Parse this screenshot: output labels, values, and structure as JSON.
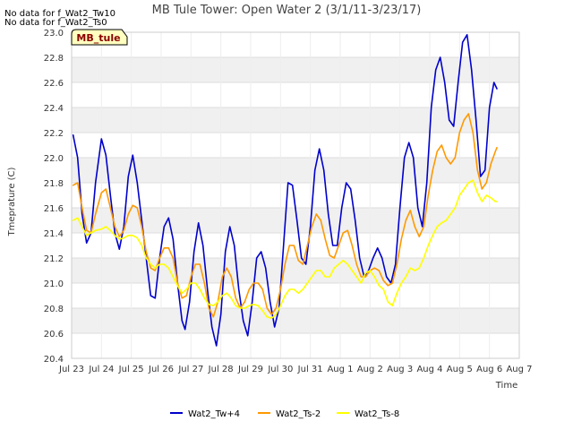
{
  "chart_data": {
    "type": "line",
    "title": "MB Tule Tower: Open Water 2 (3/1/11-3/23/17)",
    "xlabel": "Time",
    "ylabel": "Tmeprature (C)",
    "ylim": [
      20.4,
      23.0
    ],
    "xlim": [
      0,
      15
    ],
    "yticks": [
      "20.4",
      "20.6",
      "20.8",
      "21.0",
      "21.2",
      "21.4",
      "21.6",
      "21.8",
      "22.0",
      "22.2",
      "22.4",
      "22.6",
      "22.8",
      "23.0"
    ],
    "xticks": [
      "Jul 23",
      "Jul 24",
      "Jul 25",
      "Jul 26",
      "Jul 27",
      "Jul 28",
      "Jul 29",
      "Jul 30",
      "Jul 31",
      "Aug 1",
      "Aug 2",
      "Aug 3",
      "Aug 4",
      "Aug 5",
      "Aug 6",
      "Aug 7"
    ],
    "no_data_notes": [
      "No data for f_Wat2_Tw10",
      "No data for f_Wat2_Ts0"
    ],
    "badge": "MB_tule",
    "legend_position": "bottom-center",
    "series": [
      {
        "name": "Wat2_Tw+4",
        "color": "#0000cc",
        "points": [
          [
            0.05,
            22.18
          ],
          [
            0.2,
            22.0
          ],
          [
            0.35,
            21.55
          ],
          [
            0.5,
            21.32
          ],
          [
            0.65,
            21.4
          ],
          [
            0.8,
            21.8
          ],
          [
            1.0,
            22.15
          ],
          [
            1.15,
            22.02
          ],
          [
            1.3,
            21.7
          ],
          [
            1.45,
            21.4
          ],
          [
            1.6,
            21.27
          ],
          [
            1.75,
            21.45
          ],
          [
            1.9,
            21.85
          ],
          [
            2.05,
            22.02
          ],
          [
            2.2,
            21.8
          ],
          [
            2.35,
            21.5
          ],
          [
            2.5,
            21.2
          ],
          [
            2.65,
            20.9
          ],
          [
            2.8,
            20.88
          ],
          [
            2.95,
            21.2
          ],
          [
            3.1,
            21.45
          ],
          [
            3.25,
            21.52
          ],
          [
            3.4,
            21.35
          ],
          [
            3.55,
            21.0
          ],
          [
            3.7,
            20.7
          ],
          [
            3.8,
            20.63
          ],
          [
            3.95,
            20.85
          ],
          [
            4.1,
            21.25
          ],
          [
            4.25,
            21.48
          ],
          [
            4.4,
            21.3
          ],
          [
            4.55,
            20.95
          ],
          [
            4.7,
            20.65
          ],
          [
            4.85,
            20.5
          ],
          [
            5.0,
            20.75
          ],
          [
            5.15,
            21.25
          ],
          [
            5.3,
            21.45
          ],
          [
            5.45,
            21.3
          ],
          [
            5.6,
            20.95
          ],
          [
            5.75,
            20.7
          ],
          [
            5.9,
            20.58
          ],
          [
            6.05,
            20.85
          ],
          [
            6.2,
            21.2
          ],
          [
            6.35,
            21.25
          ],
          [
            6.5,
            21.12
          ],
          [
            6.65,
            20.85
          ],
          [
            6.8,
            20.65
          ],
          [
            6.95,
            20.8
          ],
          [
            7.1,
            21.3
          ],
          [
            7.25,
            21.8
          ],
          [
            7.4,
            21.78
          ],
          [
            7.55,
            21.5
          ],
          [
            7.7,
            21.2
          ],
          [
            7.85,
            21.15
          ],
          [
            8.0,
            21.45
          ],
          [
            8.15,
            21.9
          ],
          [
            8.3,
            22.07
          ],
          [
            8.45,
            21.9
          ],
          [
            8.6,
            21.55
          ],
          [
            8.75,
            21.3
          ],
          [
            8.9,
            21.3
          ],
          [
            9.05,
            21.6
          ],
          [
            9.2,
            21.8
          ],
          [
            9.35,
            21.75
          ],
          [
            9.5,
            21.5
          ],
          [
            9.65,
            21.2
          ],
          [
            9.8,
            21.05
          ],
          [
            9.95,
            21.1
          ],
          [
            10.1,
            21.2
          ],
          [
            10.25,
            21.28
          ],
          [
            10.4,
            21.2
          ],
          [
            10.55,
            21.05
          ],
          [
            10.7,
            21.0
          ],
          [
            10.85,
            21.15
          ],
          [
            11.0,
            21.6
          ],
          [
            11.15,
            22.0
          ],
          [
            11.3,
            22.12
          ],
          [
            11.45,
            22.0
          ],
          [
            11.6,
            21.6
          ],
          [
            11.75,
            21.45
          ],
          [
            11.9,
            21.8
          ],
          [
            12.05,
            22.4
          ],
          [
            12.2,
            22.7
          ],
          [
            12.35,
            22.8
          ],
          [
            12.5,
            22.6
          ],
          [
            12.65,
            22.3
          ],
          [
            12.8,
            22.25
          ],
          [
            12.95,
            22.6
          ],
          [
            13.1,
            22.92
          ],
          [
            13.25,
            22.98
          ],
          [
            13.4,
            22.7
          ],
          [
            13.55,
            22.3
          ],
          [
            13.7,
            21.85
          ],
          [
            13.85,
            21.9
          ],
          [
            14.0,
            22.4
          ],
          [
            14.15,
            22.6
          ],
          [
            14.25,
            22.55
          ]
        ]
      },
      {
        "name": "Wat2_Ts-2",
        "color": "#ff9900",
        "points": [
          [
            0.05,
            21.78
          ],
          [
            0.2,
            21.8
          ],
          [
            0.35,
            21.6
          ],
          [
            0.5,
            21.42
          ],
          [
            0.65,
            21.4
          ],
          [
            0.8,
            21.55
          ],
          [
            1.0,
            21.72
          ],
          [
            1.15,
            21.75
          ],
          [
            1.3,
            21.6
          ],
          [
            1.45,
            21.45
          ],
          [
            1.6,
            21.37
          ],
          [
            1.75,
            21.42
          ],
          [
            1.9,
            21.55
          ],
          [
            2.05,
            21.62
          ],
          [
            2.2,
            21.6
          ],
          [
            2.35,
            21.45
          ],
          [
            2.5,
            21.25
          ],
          [
            2.65,
            21.12
          ],
          [
            2.8,
            21.1
          ],
          [
            2.95,
            21.2
          ],
          [
            3.1,
            21.28
          ],
          [
            3.25,
            21.28
          ],
          [
            3.4,
            21.2
          ],
          [
            3.55,
            21.0
          ],
          [
            3.7,
            20.88
          ],
          [
            3.85,
            20.9
          ],
          [
            4.0,
            21.05
          ],
          [
            4.15,
            21.15
          ],
          [
            4.3,
            21.15
          ],
          [
            4.45,
            21.0
          ],
          [
            4.6,
            20.8
          ],
          [
            4.75,
            20.73
          ],
          [
            4.9,
            20.85
          ],
          [
            5.05,
            21.05
          ],
          [
            5.2,
            21.12
          ],
          [
            5.35,
            21.05
          ],
          [
            5.5,
            20.88
          ],
          [
            5.65,
            20.8
          ],
          [
            5.8,
            20.85
          ],
          [
            5.95,
            20.95
          ],
          [
            6.1,
            21.0
          ],
          [
            6.25,
            21.0
          ],
          [
            6.4,
            20.95
          ],
          [
            6.55,
            20.8
          ],
          [
            6.7,
            20.75
          ],
          [
            6.85,
            20.8
          ],
          [
            7.0,
            20.95
          ],
          [
            7.15,
            21.15
          ],
          [
            7.3,
            21.3
          ],
          [
            7.45,
            21.3
          ],
          [
            7.6,
            21.18
          ],
          [
            7.75,
            21.15
          ],
          [
            7.9,
            21.3
          ],
          [
            8.05,
            21.45
          ],
          [
            8.2,
            21.55
          ],
          [
            8.35,
            21.5
          ],
          [
            8.5,
            21.35
          ],
          [
            8.65,
            21.22
          ],
          [
            8.8,
            21.2
          ],
          [
            8.95,
            21.3
          ],
          [
            9.1,
            21.4
          ],
          [
            9.25,
            21.42
          ],
          [
            9.4,
            21.3
          ],
          [
            9.55,
            21.15
          ],
          [
            9.7,
            21.05
          ],
          [
            9.85,
            21.05
          ],
          [
            10.0,
            21.1
          ],
          [
            10.15,
            21.12
          ],
          [
            10.3,
            21.1
          ],
          [
            10.45,
            21.02
          ],
          [
            10.6,
            20.98
          ],
          [
            10.75,
            21.0
          ],
          [
            10.9,
            21.15
          ],
          [
            11.05,
            21.35
          ],
          [
            11.2,
            21.5
          ],
          [
            11.35,
            21.58
          ],
          [
            11.5,
            21.45
          ],
          [
            11.65,
            21.37
          ],
          [
            11.8,
            21.45
          ],
          [
            11.95,
            21.7
          ],
          [
            12.1,
            21.9
          ],
          [
            12.25,
            22.05
          ],
          [
            12.4,
            22.1
          ],
          [
            12.55,
            22.0
          ],
          [
            12.7,
            21.95
          ],
          [
            12.85,
            22.0
          ],
          [
            13.0,
            22.2
          ],
          [
            13.15,
            22.3
          ],
          [
            13.3,
            22.35
          ],
          [
            13.45,
            22.2
          ],
          [
            13.6,
            21.9
          ],
          [
            13.75,
            21.75
          ],
          [
            13.9,
            21.8
          ],
          [
            14.05,
            21.95
          ],
          [
            14.2,
            22.05
          ],
          [
            14.25,
            22.08
          ]
        ]
      },
      {
        "name": "Wat2_Ts-8",
        "color": "#ffff00",
        "points": [
          [
            0.05,
            21.5
          ],
          [
            0.2,
            21.52
          ],
          [
            0.35,
            21.45
          ],
          [
            0.5,
            21.38
          ],
          [
            0.65,
            21.4
          ],
          [
            0.8,
            21.42
          ],
          [
            1.0,
            21.43
          ],
          [
            1.15,
            21.45
          ],
          [
            1.3,
            21.42
          ],
          [
            1.45,
            21.38
          ],
          [
            1.6,
            21.35
          ],
          [
            1.75,
            21.36
          ],
          [
            1.9,
            21.38
          ],
          [
            2.05,
            21.38
          ],
          [
            2.2,
            21.36
          ],
          [
            2.35,
            21.3
          ],
          [
            2.5,
            21.2
          ],
          [
            2.65,
            21.15
          ],
          [
            2.8,
            21.12
          ],
          [
            2.95,
            21.15
          ],
          [
            3.1,
            21.15
          ],
          [
            3.25,
            21.12
          ],
          [
            3.4,
            21.05
          ],
          [
            3.55,
            20.98
          ],
          [
            3.7,
            20.92
          ],
          [
            3.85,
            20.95
          ],
          [
            4.0,
            21.0
          ],
          [
            4.15,
            21.0
          ],
          [
            4.3,
            20.95
          ],
          [
            4.45,
            20.88
          ],
          [
            4.6,
            20.83
          ],
          [
            4.75,
            20.82
          ],
          [
            4.9,
            20.85
          ],
          [
            5.05,
            20.9
          ],
          [
            5.2,
            20.92
          ],
          [
            5.35,
            20.88
          ],
          [
            5.5,
            20.82
          ],
          [
            5.65,
            20.8
          ],
          [
            5.8,
            20.8
          ],
          [
            5.95,
            20.82
          ],
          [
            6.1,
            20.83
          ],
          [
            6.25,
            20.82
          ],
          [
            6.4,
            20.78
          ],
          [
            6.55,
            20.73
          ],
          [
            6.7,
            20.72
          ],
          [
            6.85,
            20.75
          ],
          [
            7.0,
            20.82
          ],
          [
            7.15,
            20.9
          ],
          [
            7.3,
            20.95
          ],
          [
            7.45,
            20.95
          ],
          [
            7.6,
            20.92
          ],
          [
            7.75,
            20.95
          ],
          [
            7.9,
            21.0
          ],
          [
            8.05,
            21.05
          ],
          [
            8.2,
            21.1
          ],
          [
            8.35,
            21.1
          ],
          [
            8.5,
            21.05
          ],
          [
            8.65,
            21.05
          ],
          [
            8.8,
            21.12
          ],
          [
            8.95,
            21.15
          ],
          [
            9.1,
            21.18
          ],
          [
            9.25,
            21.15
          ],
          [
            9.4,
            21.1
          ],
          [
            9.55,
            21.05
          ],
          [
            9.7,
            21.0
          ],
          [
            9.85,
            21.08
          ],
          [
            10.0,
            21.1
          ],
          [
            10.15,
            21.05
          ],
          [
            10.3,
            20.98
          ],
          [
            10.45,
            20.95
          ],
          [
            10.6,
            20.85
          ],
          [
            10.75,
            20.82
          ],
          [
            10.9,
            20.92
          ],
          [
            11.05,
            21.0
          ],
          [
            11.2,
            21.05
          ],
          [
            11.35,
            21.12
          ],
          [
            11.5,
            21.1
          ],
          [
            11.65,
            21.12
          ],
          [
            11.8,
            21.2
          ],
          [
            11.95,
            21.3
          ],
          [
            12.1,
            21.38
          ],
          [
            12.25,
            21.45
          ],
          [
            12.4,
            21.48
          ],
          [
            12.55,
            21.5
          ],
          [
            12.7,
            21.55
          ],
          [
            12.85,
            21.6
          ],
          [
            13.0,
            21.7
          ],
          [
            13.15,
            21.75
          ],
          [
            13.3,
            21.8
          ],
          [
            13.45,
            21.82
          ],
          [
            13.6,
            21.72
          ],
          [
            13.75,
            21.65
          ],
          [
            13.9,
            21.7
          ],
          [
            14.05,
            21.68
          ],
          [
            14.2,
            21.65
          ],
          [
            14.25,
            21.65
          ]
        ]
      }
    ]
  }
}
